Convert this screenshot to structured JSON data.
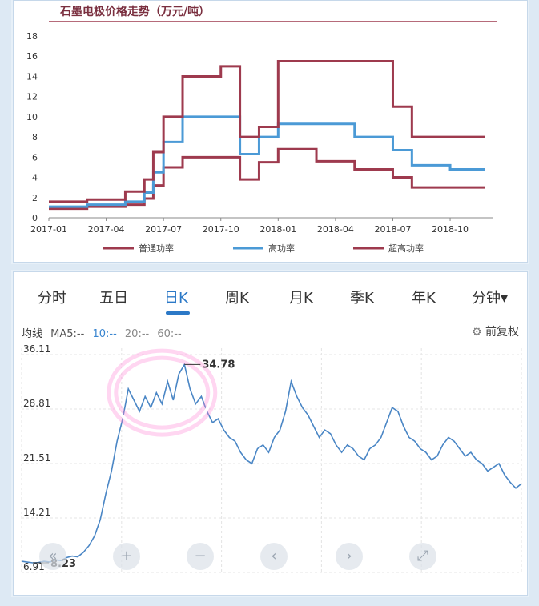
{
  "colors": {
    "regular": "#9e3a4e",
    "high": "#4b9ad6",
    "ultra": "#9e3a4e",
    "stock_line": "#4a86c5",
    "tab_active": "#2c79c7",
    "highlight": "#ff8ad6"
  },
  "chart_data": [
    {
      "type": "line",
      "title": "石墨电极价格走势（万元/吨）",
      "xlabel": "",
      "ylabel": "",
      "ylim": [
        0,
        18
      ],
      "yticks": [
        0,
        2,
        4,
        6,
        8,
        10,
        12,
        14,
        16,
        18
      ],
      "xticks": [
        "2017-01",
        "2017-04",
        "2017-07",
        "2017-10",
        "2018-01",
        "2018-04",
        "2018-07",
        "2018-10"
      ],
      "x_range_months": [
        "2017-01",
        "2018-11"
      ],
      "legend_position": "bottom",
      "grid": false,
      "series": [
        {
          "name": "普通功率",
          "x": [
            "2017-01",
            "2017-03",
            "2017-05",
            "2017-06",
            "2017-06-15",
            "2017-07",
            "2017-08",
            "2017-10",
            "2017-11",
            "2017-12",
            "2018-01",
            "2018-03",
            "2018-05",
            "2018-07",
            "2018-08",
            "2018-10",
            "2018-11"
          ],
          "values": [
            0.9,
            1.1,
            1.3,
            1.9,
            3.2,
            5.0,
            6.0,
            6.0,
            3.8,
            5.5,
            6.8,
            5.6,
            4.8,
            4.0,
            3.0,
            3.0,
            3.0
          ]
        },
        {
          "name": "高功率",
          "x": [
            "2017-01",
            "2017-03",
            "2017-05",
            "2017-06",
            "2017-06-15",
            "2017-07",
            "2017-08",
            "2017-10",
            "2017-11",
            "2017-12",
            "2018-01",
            "2018-03",
            "2018-05",
            "2018-07",
            "2018-08",
            "2018-10",
            "2018-11"
          ],
          "values": [
            1.1,
            1.3,
            1.6,
            2.5,
            4.5,
            7.5,
            10.0,
            10.0,
            6.3,
            8.0,
            9.3,
            9.3,
            8.0,
            6.7,
            5.2,
            4.8,
            4.8
          ]
        },
        {
          "name": "超高功率",
          "x": [
            "2017-01",
            "2017-03",
            "2017-05",
            "2017-06",
            "2017-06-15",
            "2017-07",
            "2017-08",
            "2017-10",
            "2017-11",
            "2017-12",
            "2018-01",
            "2018-03",
            "2018-05",
            "2018-07",
            "2018-08",
            "2018-10",
            "2018-11"
          ],
          "values": [
            1.6,
            1.8,
            2.6,
            3.8,
            6.5,
            10.0,
            14.0,
            15.0,
            8.0,
            9.0,
            15.5,
            15.5,
            15.5,
            11.0,
            8.0,
            8.0,
            8.0
          ]
        }
      ]
    },
    {
      "type": "line",
      "title": "",
      "yticks": [
        36.11,
        28.81,
        21.51,
        14.21,
        6.91
      ],
      "ylim": [
        6.91,
        36.11
      ],
      "annotations": {
        "max": "34.78",
        "min": "8.23"
      },
      "series": [
        {
          "name": "",
          "values": [
            8.4,
            8.3,
            8.2,
            8.23,
            8.4,
            8.3,
            8.6,
            8.5,
            8.9,
            9.1,
            9.0,
            9.6,
            10.5,
            11.8,
            14.0,
            17.5,
            20.5,
            24.5,
            27.5,
            31.5,
            30.0,
            28.5,
            30.5,
            29.0,
            31.0,
            29.5,
            32.5,
            30.0,
            33.5,
            34.78,
            31.5,
            29.5,
            30.5,
            28.5,
            27.0,
            27.5,
            26.0,
            25.0,
            24.5,
            23.0,
            22.0,
            21.5,
            23.5,
            24.0,
            23.0,
            25.0,
            26.0,
            28.5,
            32.5,
            30.5,
            29.0,
            28.0,
            26.5,
            25.0,
            26.0,
            25.5,
            24.0,
            23.0,
            24.0,
            23.5,
            22.5,
            22.0,
            23.5,
            24.0,
            25.0,
            27.0,
            29.0,
            28.5,
            26.5,
            25.0,
            24.5,
            23.5,
            23.0,
            22.0,
            22.5,
            24.0,
            25.0,
            24.5,
            23.5,
            22.5,
            23.0,
            22.0,
            21.5,
            20.5,
            21.0,
            21.5,
            20.0,
            19.0,
            18.2,
            18.8
          ]
        }
      ]
    }
  ],
  "tabs": [
    "分时",
    "五日",
    "日K",
    "周K",
    "月K",
    "季K",
    "年K",
    "分钟▾"
  ],
  "active_tab_index": 2,
  "ma": {
    "label": "均线",
    "ma5": "MA5:--",
    "ma10": "10:--",
    "ma20": "20:--",
    "ma60": "60:--"
  },
  "settings_label": "前复权",
  "controls": [
    "«",
    "+",
    "−",
    "‹",
    "›",
    "⤢"
  ]
}
